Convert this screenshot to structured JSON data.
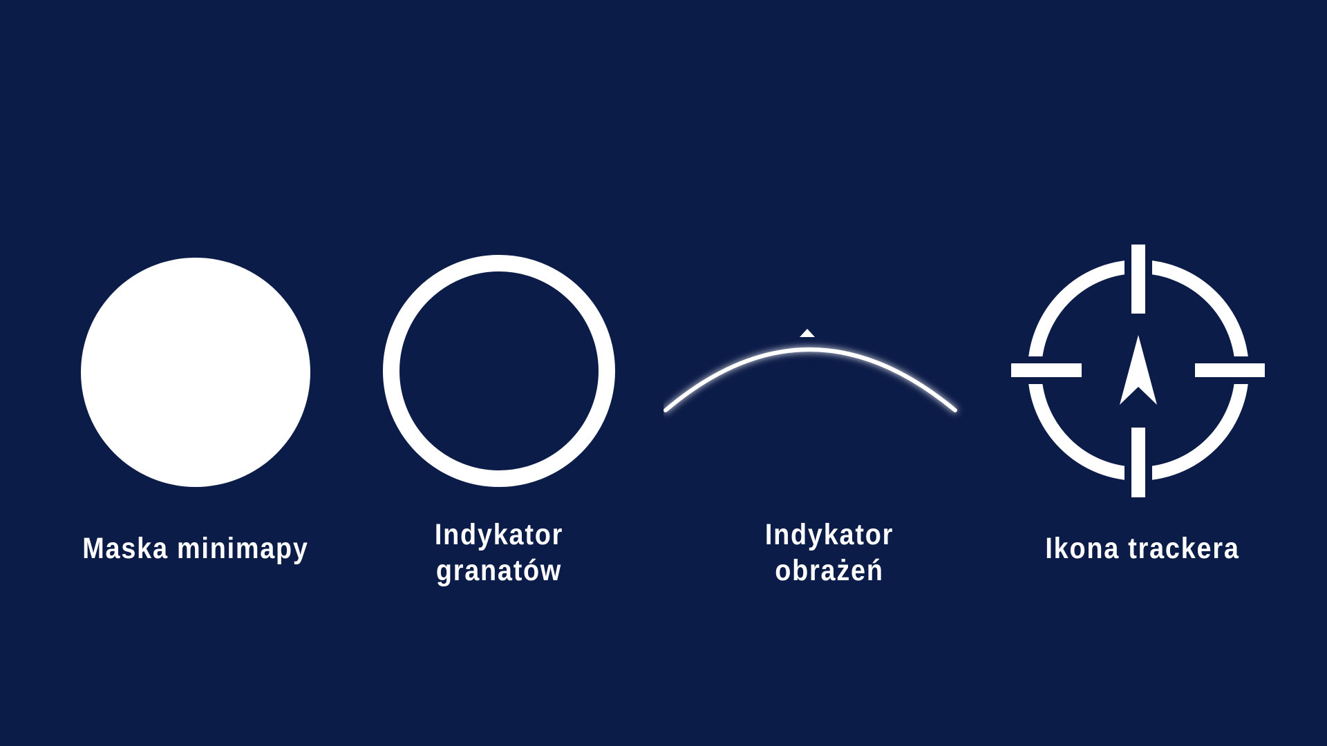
{
  "background_color": "#0c1c48",
  "icon_color": "#ffffff",
  "assets": [
    {
      "id": "minimap-mask",
      "icon": "filled-circle-icon",
      "label_lines": [
        "Maska minimapy"
      ]
    },
    {
      "id": "grenade-indicator",
      "icon": "ring-icon",
      "label_lines": [
        "Indykator",
        "granatów"
      ]
    },
    {
      "id": "damage-indicator",
      "icon": "glowing-arc-icon",
      "label_lines": [
        "Indykator",
        "obrażeń"
      ]
    },
    {
      "id": "tracker-icon",
      "icon": "crosshair-arrow-icon",
      "label_lines": [
        "Ikona trackera"
      ]
    }
  ]
}
